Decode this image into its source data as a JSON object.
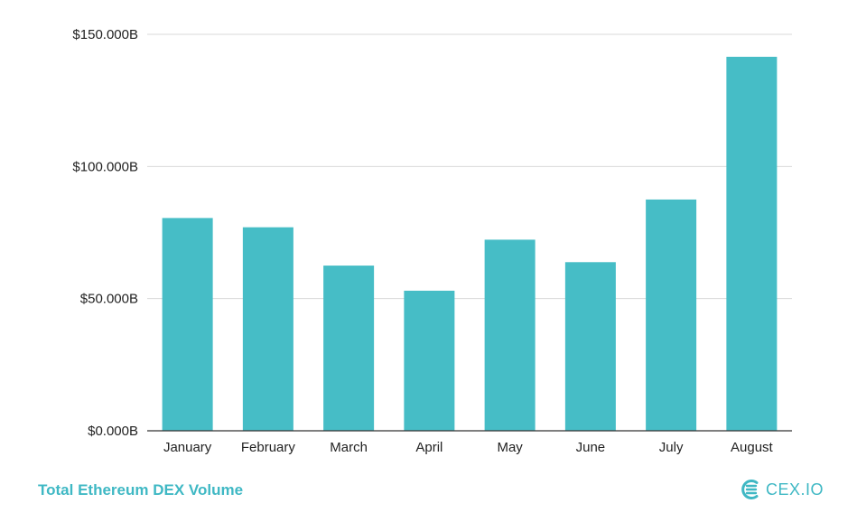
{
  "chart_data": {
    "type": "bar",
    "categories": [
      "January",
      "February",
      "March",
      "April",
      "May",
      "June",
      "July",
      "August"
    ],
    "values": [
      80.5,
      77,
      62.5,
      53,
      72.3,
      63.8,
      87.5,
      141.5
    ],
    "title": "",
    "xlabel": "",
    "ylabel": "",
    "ylim": [
      0,
      150
    ],
    "yticks": [
      0,
      50,
      100,
      150
    ],
    "ytick_labels": [
      "$0.000B",
      "$50.000B",
      "$100.000B",
      "$150.000B"
    ],
    "grid": true,
    "bar_color": "#46bdc6",
    "grid_color": "#d9d9d9",
    "axis_color": "#333333"
  },
  "footer": {
    "title": "Total Ethereum DEX Volume",
    "brand": "CEX.IO"
  },
  "colors": {
    "accent": "#3fb8c4"
  }
}
